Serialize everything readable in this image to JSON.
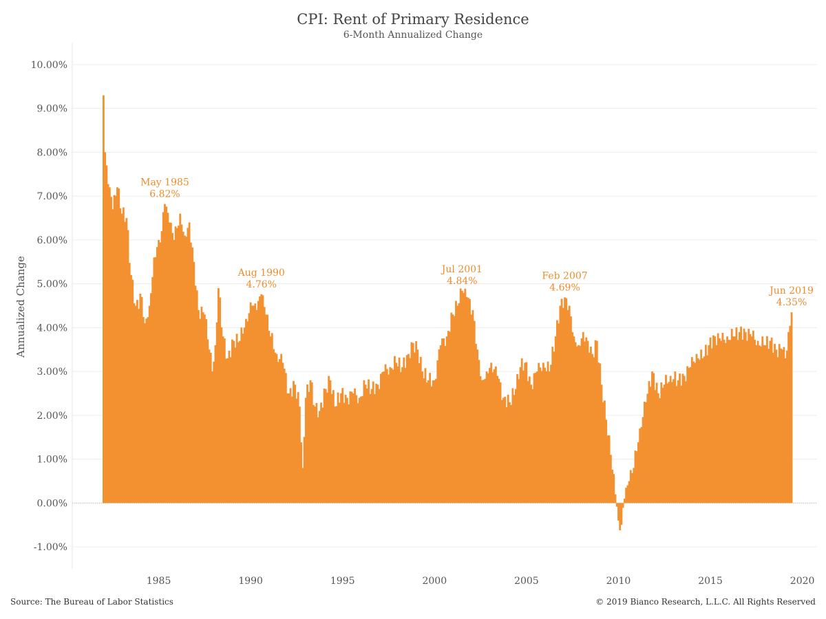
{
  "chart_data": {
    "type": "bar",
    "title": "CPI: Rent of Primary Residence",
    "subtitle": "6-Month Annualized Change",
    "ylabel": "Annualized Change",
    "ylim": [
      -1.5,
      10.5
    ],
    "xlim": [
      1980.3,
      2020.8
    ],
    "yticks": [
      {
        "value": 10,
        "label": "10.00%"
      },
      {
        "value": 9,
        "label": "9.00%"
      },
      {
        "value": 8,
        "label": "8.00%"
      },
      {
        "value": 7,
        "label": "7.00%"
      },
      {
        "value": 6,
        "label": "6.00%"
      },
      {
        "value": 5,
        "label": "5.00%"
      },
      {
        "value": 4,
        "label": "4.00%"
      },
      {
        "value": 3,
        "label": "3.00%"
      },
      {
        "value": 2,
        "label": "2.00%"
      },
      {
        "value": 1,
        "label": "1.00%"
      },
      {
        "value": 0,
        "label": "0.00%"
      },
      {
        "value": -1,
        "label": "-1.00%"
      }
    ],
    "xticks": [
      {
        "value": 1985,
        "label": "1985"
      },
      {
        "value": 1990,
        "label": "1990"
      },
      {
        "value": 1995,
        "label": "1995"
      },
      {
        "value": 2000,
        "label": "2000"
      },
      {
        "value": 2005,
        "label": "2005"
      },
      {
        "value": 2010,
        "label": "2010"
      },
      {
        "value": 2015,
        "label": "2015"
      },
      {
        "value": 2020,
        "label": "2020"
      }
    ],
    "bar_color": "#f39130",
    "annotation_color": "#ef8c2a",
    "grid": true,
    "series_keypoints": [
      [
        "1982-01",
        9.3
      ],
      [
        "1982-02",
        8.0
      ],
      [
        "1982-03",
        7.7
      ],
      [
        "1982-05",
        7.2
      ],
      [
        "1982-07",
        6.7
      ],
      [
        "1982-10",
        7.2
      ],
      [
        "1983-01",
        6.6
      ],
      [
        "1983-04",
        6.5
      ],
      [
        "1983-07",
        5.2
      ],
      [
        "1983-10",
        4.5
      ],
      [
        "1984-02",
        4.7
      ],
      [
        "1984-04",
        4.1
      ],
      [
        "1984-07",
        4.5
      ],
      [
        "1984-10",
        5.6
      ],
      [
        "1985-01",
        6.0
      ],
      [
        "1985-03",
        6.2
      ],
      [
        "1985-05",
        6.82
      ],
      [
        "1985-08",
        6.4
      ],
      [
        "1985-11",
        6.0
      ],
      [
        "1986-03",
        6.6
      ],
      [
        "1986-06",
        6.1
      ],
      [
        "1986-09",
        6.4
      ],
      [
        "1986-12",
        5.5
      ],
      [
        "1987-03",
        4.4
      ],
      [
        "1987-07",
        4.3
      ],
      [
        "1987-10",
        3.5
      ],
      [
        "1987-12",
        3.0
      ],
      [
        "1988-02",
        3.6
      ],
      [
        "1988-04",
        4.9
      ],
      [
        "1988-07",
        3.8
      ],
      [
        "1988-10",
        3.3
      ],
      [
        "1989-02",
        3.7
      ],
      [
        "1989-06",
        3.7
      ],
      [
        "1989-10",
        4.2
      ],
      [
        "1990-02",
        4.5
      ],
      [
        "1990-05",
        4.4
      ],
      [
        "1990-08",
        4.76
      ],
      [
        "1990-11",
        4.3
      ],
      [
        "1991-02",
        3.8
      ],
      [
        "1991-06",
        3.4
      ],
      [
        "1991-10",
        3.2
      ],
      [
        "1992-02",
        2.5
      ],
      [
        "1992-06",
        2.7
      ],
      [
        "1992-09",
        2.2
      ],
      [
        "1992-11",
        0.8
      ],
      [
        "1993-01",
        2.4
      ],
      [
        "1993-04",
        2.8
      ],
      [
        "1993-07",
        2.2
      ],
      [
        "1993-10",
        2.1
      ],
      [
        "1994-02",
        2.6
      ],
      [
        "1994-05",
        2.8
      ],
      [
        "1994-08",
        2.2
      ],
      [
        "1994-12",
        2.5
      ],
      [
        "1995-04",
        2.4
      ],
      [
        "1995-08",
        2.5
      ],
      [
        "1995-12",
        2.4
      ],
      [
        "1996-04",
        2.7
      ],
      [
        "1996-08",
        2.6
      ],
      [
        "1996-12",
        2.7
      ],
      [
        "1997-04",
        3.0
      ],
      [
        "1997-08",
        3.1
      ],
      [
        "1997-12",
        3.2
      ],
      [
        "1998-04",
        3.1
      ],
      [
        "1998-08",
        3.4
      ],
      [
        "1998-11",
        3.65
      ],
      [
        "1999-02",
        3.5
      ],
      [
        "1999-05",
        3.0
      ],
      [
        "1999-09",
        2.8
      ],
      [
        "2000-01",
        2.8
      ],
      [
        "2000-05",
        3.6
      ],
      [
        "2000-09",
        3.8
      ],
      [
        "2001-01",
        4.3
      ],
      [
        "2001-04",
        4.5
      ],
      [
        "2001-07",
        4.84
      ],
      [
        "2001-10",
        4.7
      ],
      [
        "2002-02",
        4.4
      ],
      [
        "2002-05",
        3.5
      ],
      [
        "2002-08",
        2.8
      ],
      [
        "2002-11",
        3.0
      ],
      [
        "2003-02",
        3.2
      ],
      [
        "2003-06",
        2.9
      ],
      [
        "2003-10",
        2.4
      ],
      [
        "2004-02",
        2.3
      ],
      [
        "2004-06",
        2.6
      ],
      [
        "2004-09",
        3.1
      ],
      [
        "2004-12",
        3.2
      ],
      [
        "2005-04",
        2.7
      ],
      [
        "2005-08",
        3.0
      ],
      [
        "2005-12",
        3.2
      ],
      [
        "2006-04",
        3.0
      ],
      [
        "2006-08",
        3.8
      ],
      [
        "2006-11",
        4.5
      ],
      [
        "2007-02",
        4.69
      ],
      [
        "2007-05",
        4.5
      ],
      [
        "2007-08",
        3.8
      ],
      [
        "2007-11",
        3.6
      ],
      [
        "2008-02",
        3.9
      ],
      [
        "2008-05",
        3.7
      ],
      [
        "2008-08",
        3.4
      ],
      [
        "2008-11",
        3.7
      ],
      [
        "2009-02",
        2.7
      ],
      [
        "2009-05",
        1.9
      ],
      [
        "2009-08",
        1.1
      ],
      [
        "2009-11",
        0.2
      ],
      [
        "2010-01",
        -0.4
      ],
      [
        "2010-03",
        -0.5
      ],
      [
        "2010-05",
        0.1
      ],
      [
        "2010-08",
        0.5
      ],
      [
        "2010-11",
        0.8
      ],
      [
        "2011-03",
        1.7
      ],
      [
        "2011-07",
        2.3
      ],
      [
        "2011-11",
        3.0
      ],
      [
        "2012-03",
        2.5
      ],
      [
        "2012-07",
        2.7
      ],
      [
        "2012-11",
        2.9
      ],
      [
        "2013-04",
        2.8
      ],
      [
        "2013-08",
        2.9
      ],
      [
        "2013-12",
        3.1
      ],
      [
        "2014-04",
        3.4
      ],
      [
        "2014-08",
        3.3
      ],
      [
        "2014-12",
        3.6
      ],
      [
        "2015-04",
        3.8
      ],
      [
        "2015-08",
        3.7
      ],
      [
        "2015-12",
        3.8
      ],
      [
        "2016-04",
        3.8
      ],
      [
        "2016-08",
        3.9
      ],
      [
        "2016-12",
        3.9
      ],
      [
        "2017-04",
        3.8
      ],
      [
        "2017-08",
        3.7
      ],
      [
        "2017-12",
        3.6
      ],
      [
        "2018-04",
        3.7
      ],
      [
        "2018-08",
        3.5
      ],
      [
        "2018-12",
        3.5
      ],
      [
        "2019-02",
        3.3
      ],
      [
        "2019-04",
        3.9
      ],
      [
        "2019-06",
        4.35
      ]
    ],
    "annotations": [
      {
        "date": "1985-05",
        "label": "May 1985",
        "value_label": "6.82%"
      },
      {
        "date": "1990-08",
        "label": "Aug 1990",
        "value_label": "4.76%"
      },
      {
        "date": "2001-07",
        "label": "Jul 2001",
        "value_label": "4.84%"
      },
      {
        "date": "2007-02",
        "label": "Feb 2007",
        "value_label": "4.69%"
      },
      {
        "date": "2019-06",
        "label": "Jun 2019",
        "value_label": "4.35%"
      }
    ]
  },
  "footer": {
    "source": "Source: The Bureau of Labor Statistics",
    "copyright": "© 2019 Bianco Research, L.L.C. All Rights Reserved"
  }
}
